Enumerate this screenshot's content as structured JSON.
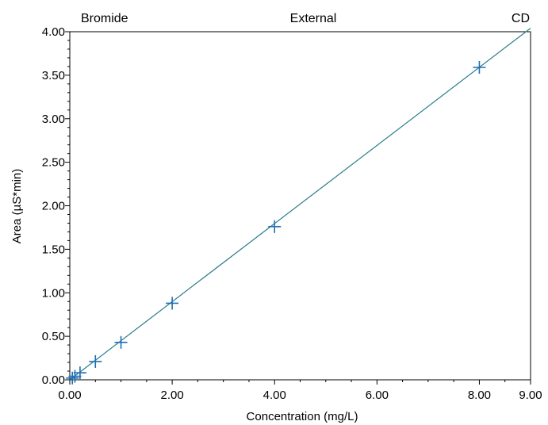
{
  "header": {
    "left": "Bromide",
    "center": "External",
    "right": "CD"
  },
  "colors": {
    "fit_line": "#2a7d8c",
    "marker": "#1f6fb5",
    "axis": "#000000"
  },
  "chart_data": {
    "type": "scatter",
    "xlabel": "Concentration (mg/L)",
    "ylabel": "Area (µS*min)",
    "xlim": [
      0,
      9
    ],
    "ylim": [
      0,
      4
    ],
    "x_ticks": [
      0,
      2,
      4,
      6,
      8,
      9
    ],
    "x_tick_labels": [
      "0.00",
      "2.00",
      "4.00",
      "6.00",
      "8.00",
      "9.00"
    ],
    "y_ticks": [
      0,
      0.5,
      1,
      1.5,
      2,
      2.5,
      3,
      3.5,
      4
    ],
    "y_tick_labels": [
      "0.00",
      "0.50",
      "1.00",
      "1.50",
      "2.00",
      "2.50",
      "3.00",
      "3.50",
      "4.00"
    ],
    "series": [
      {
        "x": [
          0.05,
          0.1,
          0.2,
          0.5,
          1.0,
          2.0,
          4.0,
          8.0
        ],
        "y": [
          0.02,
          0.04,
          0.08,
          0.21,
          0.43,
          0.88,
          1.76,
          3.59
        ]
      }
    ],
    "fit_line": {
      "x": [
        0,
        9
      ],
      "y": [
        0,
        4.04
      ]
    },
    "grid": false,
    "marker": "plus"
  }
}
